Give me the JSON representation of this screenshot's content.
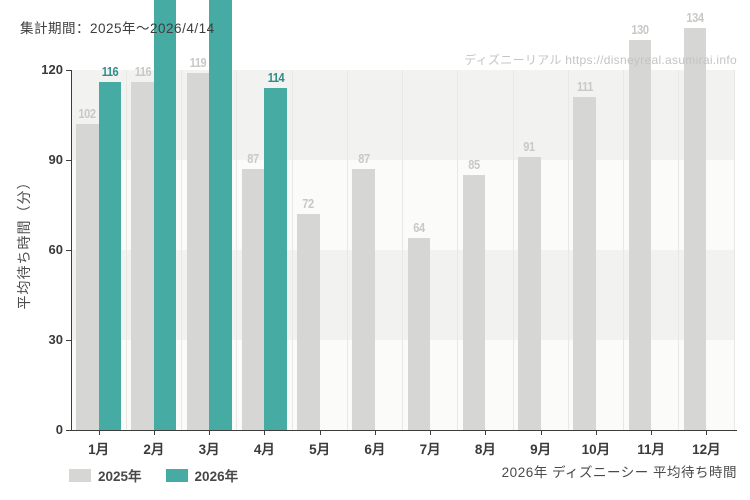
{
  "header": {
    "title": "集計期間：2025年〜2026/4/14"
  },
  "watermark": {
    "text": "ディズニーリアル https://disneyreal.asumirai.info"
  },
  "footer": {
    "caption": "2026年 ディズニーシー 平均待ち時間"
  },
  "legend": {
    "items": [
      {
        "label": "2025年",
        "color": "#d6d6d4"
      },
      {
        "label": "2026年",
        "color": "#45aba3"
      }
    ]
  },
  "colors": {
    "band_gray": "#f2f2f0",
    "band_light": "#fbfbf9",
    "gridline": "#e8e8e6",
    "axis": "#3d3d3d",
    "bar_2025": "#d6d6d4",
    "bar_2026": "#45aba3",
    "label_2025": "#c8c8c7",
    "label_2026": "#2d8e87"
  },
  "chart_data": {
    "type": "bar",
    "title": "2026年 ディズニーシー 平均待ち時間",
    "subtitle": "集計期間：2025年〜2026/4/14",
    "xlabel": "",
    "ylabel": "平均待ち時間（分）",
    "categories": [
      "1月",
      "2月",
      "3月",
      "4月",
      "5月",
      "6月",
      "7月",
      "8月",
      "9月",
      "10月",
      "11月",
      "12月"
    ],
    "yticks": [
      0,
      30,
      60,
      90,
      120
    ],
    "ylim": [
      0,
      120
    ],
    "grid": "alternating-horizontal-bands-and-vertical-month-lines",
    "legend_position": "bottom-left",
    "series": [
      {
        "name": "2025年",
        "color": "#d6d6d4",
        "label_color": "#c8c8c7",
        "values": [
          102,
          116,
          119,
          87,
          72,
          87,
          64,
          85,
          91,
          111,
          130,
          134
        ]
      },
      {
        "name": "2026年",
        "color": "#45aba3",
        "label_color": "#2d8e87",
        "values": [
          116,
          null,
          null,
          114,
          null,
          null,
          null,
          null,
          null,
          null,
          null,
          null
        ],
        "clipped_above_chart": [
          "2月",
          "3月"
        ]
      }
    ]
  }
}
